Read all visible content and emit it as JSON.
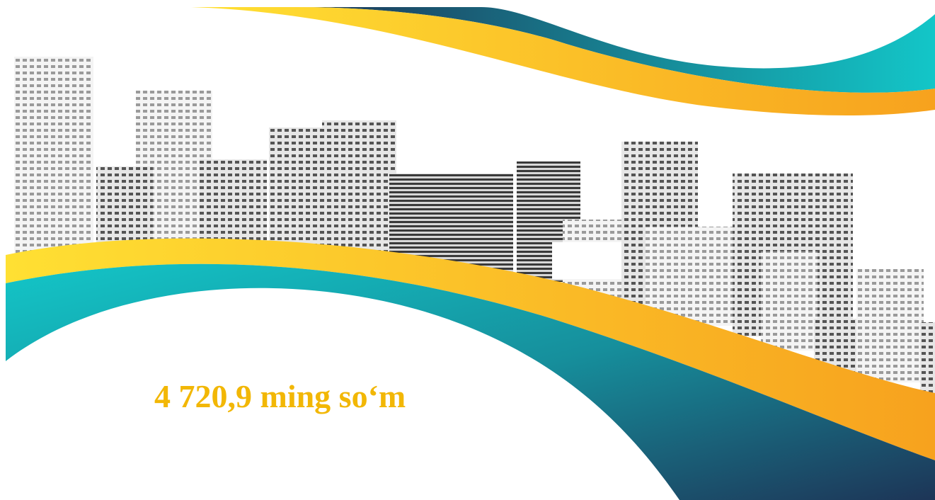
{
  "text": "4 720,9 ming so‘m"
}
